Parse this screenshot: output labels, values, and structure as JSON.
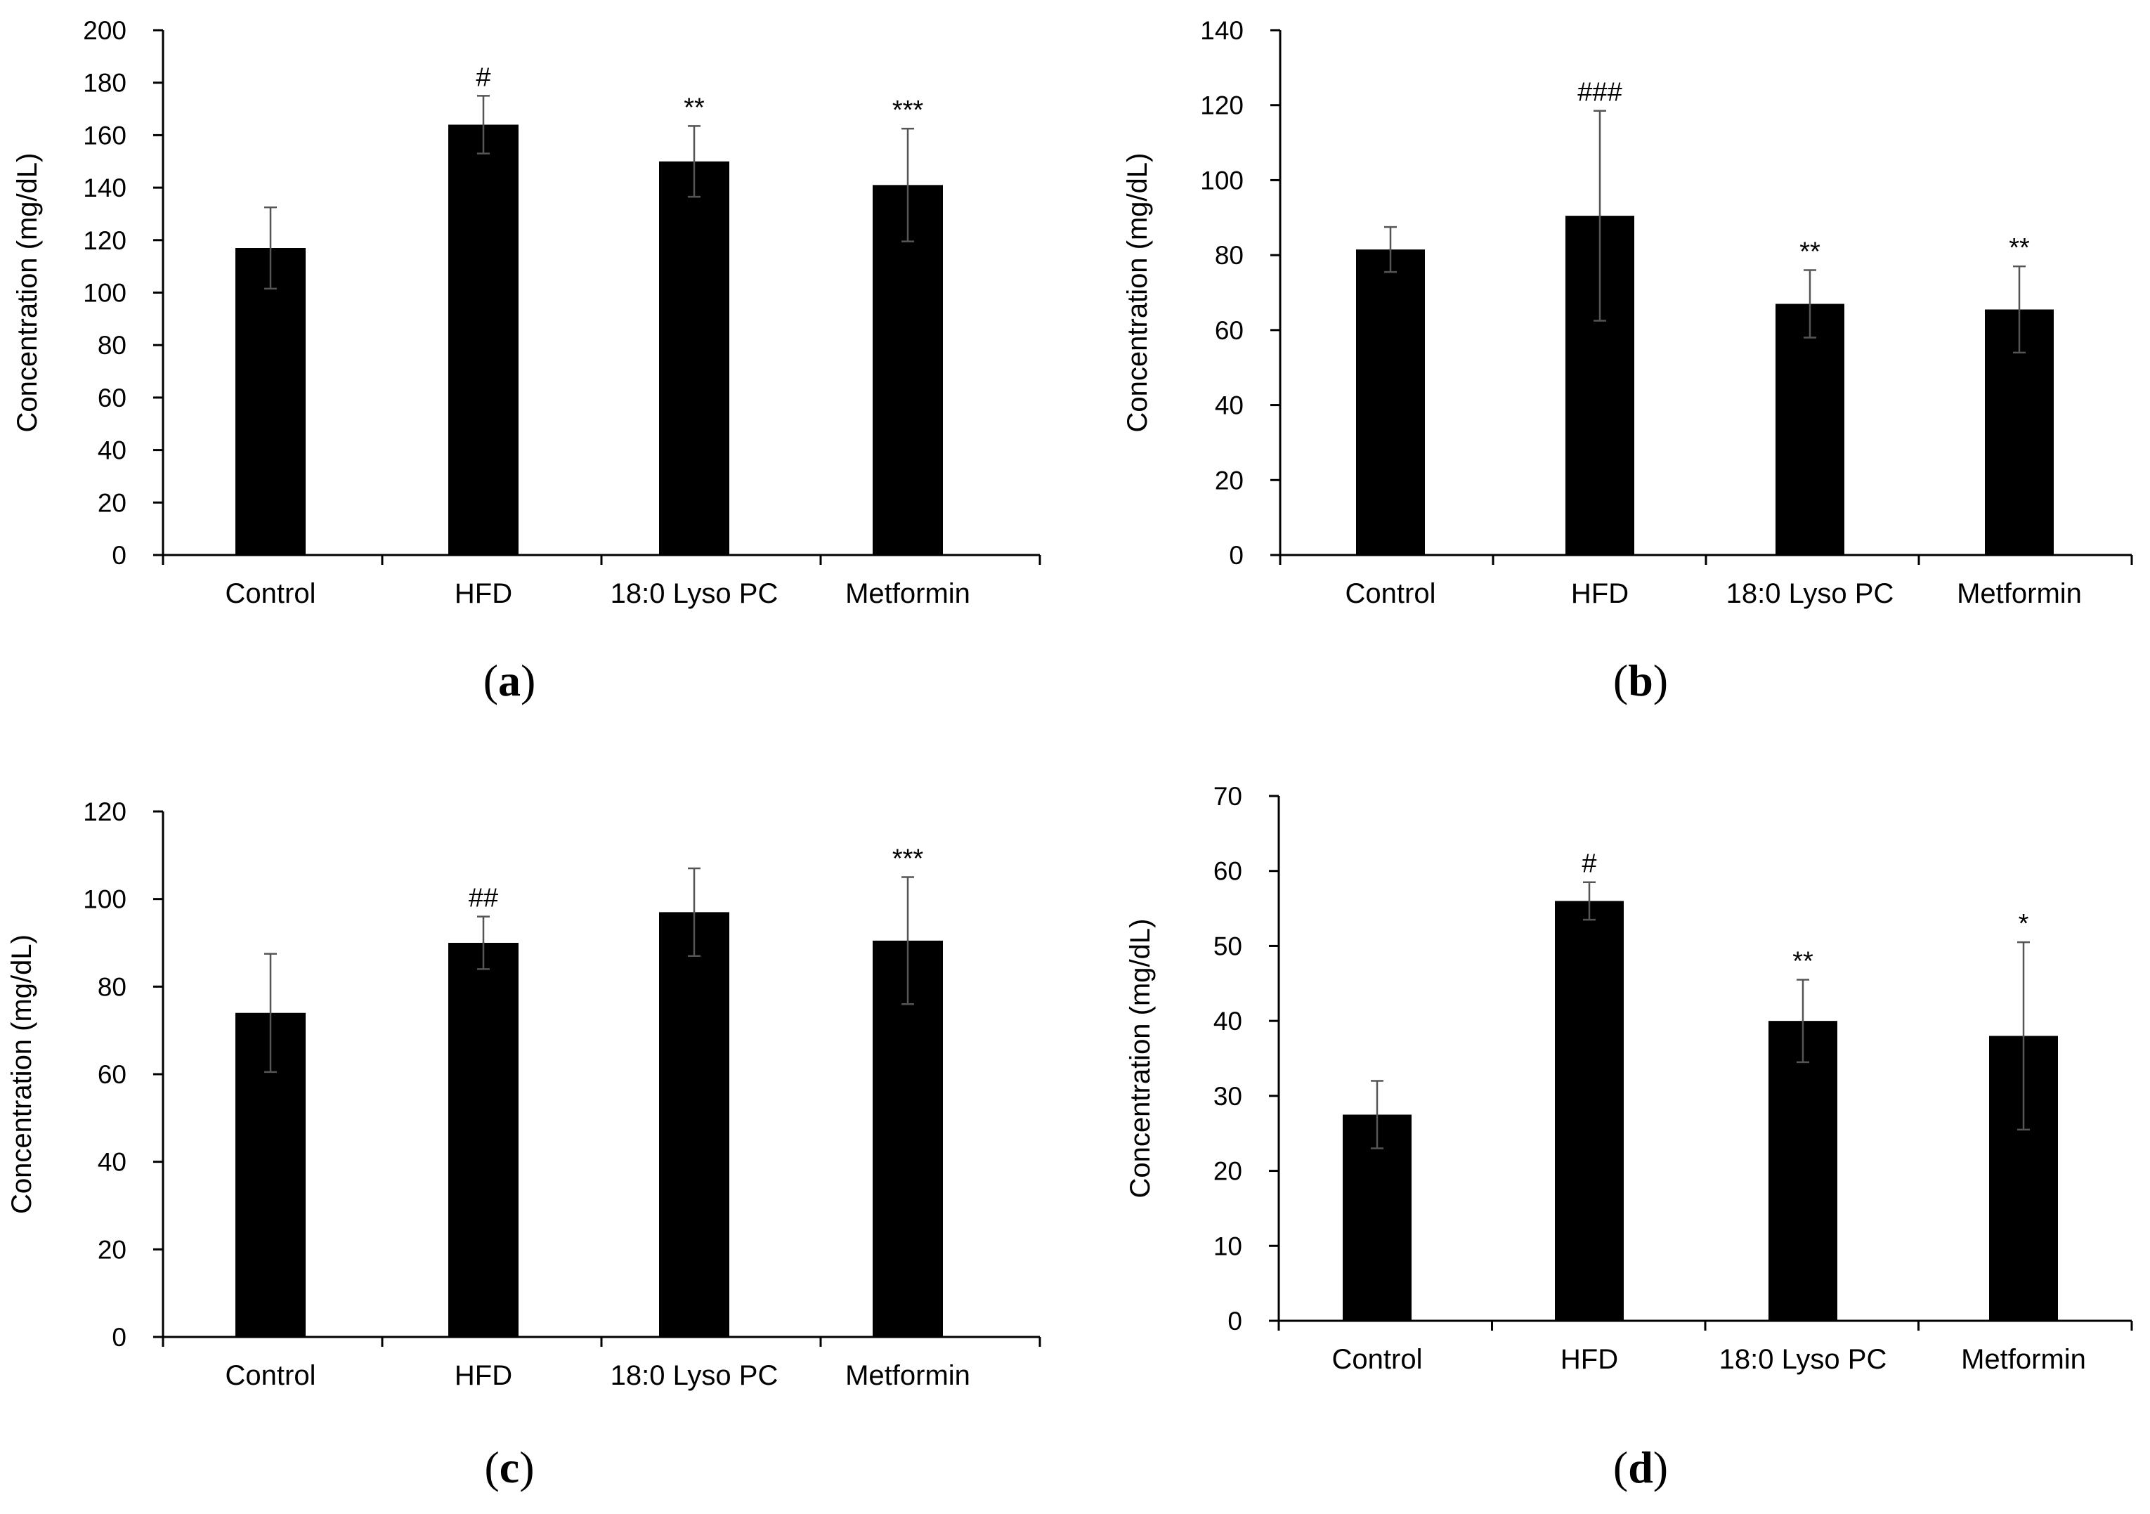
{
  "chart_data": [
    {
      "type": "bar",
      "panel": "a",
      "ylabel": "Concentration (mg/dL)",
      "categories": [
        "Control",
        "HFD",
        "18:0 Lyso PC",
        "Metformin"
      ],
      "values": [
        117,
        164,
        150,
        141
      ],
      "errors": [
        15.5,
        11,
        13.5,
        21.5
      ],
      "annotations": [
        "",
        "#",
        "**",
        "***"
      ],
      "ylim": [
        0,
        200
      ],
      "yticks": [
        0,
        20,
        40,
        60,
        80,
        100,
        120,
        140,
        160,
        180,
        200
      ],
      "bar_color": "#000000"
    },
    {
      "type": "bar",
      "panel": "b",
      "ylabel": "Concentration (mg/dL)",
      "categories": [
        "Control",
        "HFD",
        "18:0 Lyso PC",
        "Metformin"
      ],
      "values": [
        81.5,
        90.5,
        67,
        65.5
      ],
      "errors": [
        6,
        28,
        9,
        11.5
      ],
      "annotations": [
        "",
        "###",
        "**",
        "**"
      ],
      "ylim": [
        0,
        140
      ],
      "yticks": [
        0,
        20,
        40,
        60,
        80,
        100,
        120,
        140
      ],
      "bar_color": "#000000"
    },
    {
      "type": "bar",
      "panel": "c",
      "ylabel": "Concentration (mg/dL)",
      "categories": [
        "Control",
        "HFD",
        "18:0 Lyso PC",
        "Metformin"
      ],
      "values": [
        74,
        90,
        97,
        90.5
      ],
      "errors": [
        13.5,
        6,
        10,
        14.5
      ],
      "annotations": [
        "",
        "##",
        "",
        "***"
      ],
      "ylim": [
        0,
        120
      ],
      "yticks": [
        0,
        20,
        40,
        60,
        80,
        100,
        120
      ],
      "bar_color": "#000000"
    },
    {
      "type": "bar",
      "panel": "d",
      "ylabel": "Concentration (mg/dL)",
      "categories": [
        "Control",
        "HFD",
        "18:0 Lyso PC",
        "Metformin"
      ],
      "values": [
        27.5,
        56,
        40,
        38
      ],
      "errors": [
        4.5,
        2.5,
        5.5,
        12.5
      ],
      "annotations": [
        "",
        "#",
        "**",
        "*"
      ],
      "ylim": [
        0,
        70
      ],
      "yticks": [
        0,
        10,
        20,
        30,
        40,
        50,
        60,
        70
      ],
      "bar_color": "#000000"
    }
  ],
  "captions": [
    {
      "open": "(",
      "letter": "a",
      "close": ")"
    },
    {
      "open": "(",
      "letter": "b",
      "close": ")"
    },
    {
      "open": "(",
      "letter": "c",
      "close": ")"
    },
    {
      "open": "(",
      "letter": "d",
      "close": ")"
    }
  ]
}
